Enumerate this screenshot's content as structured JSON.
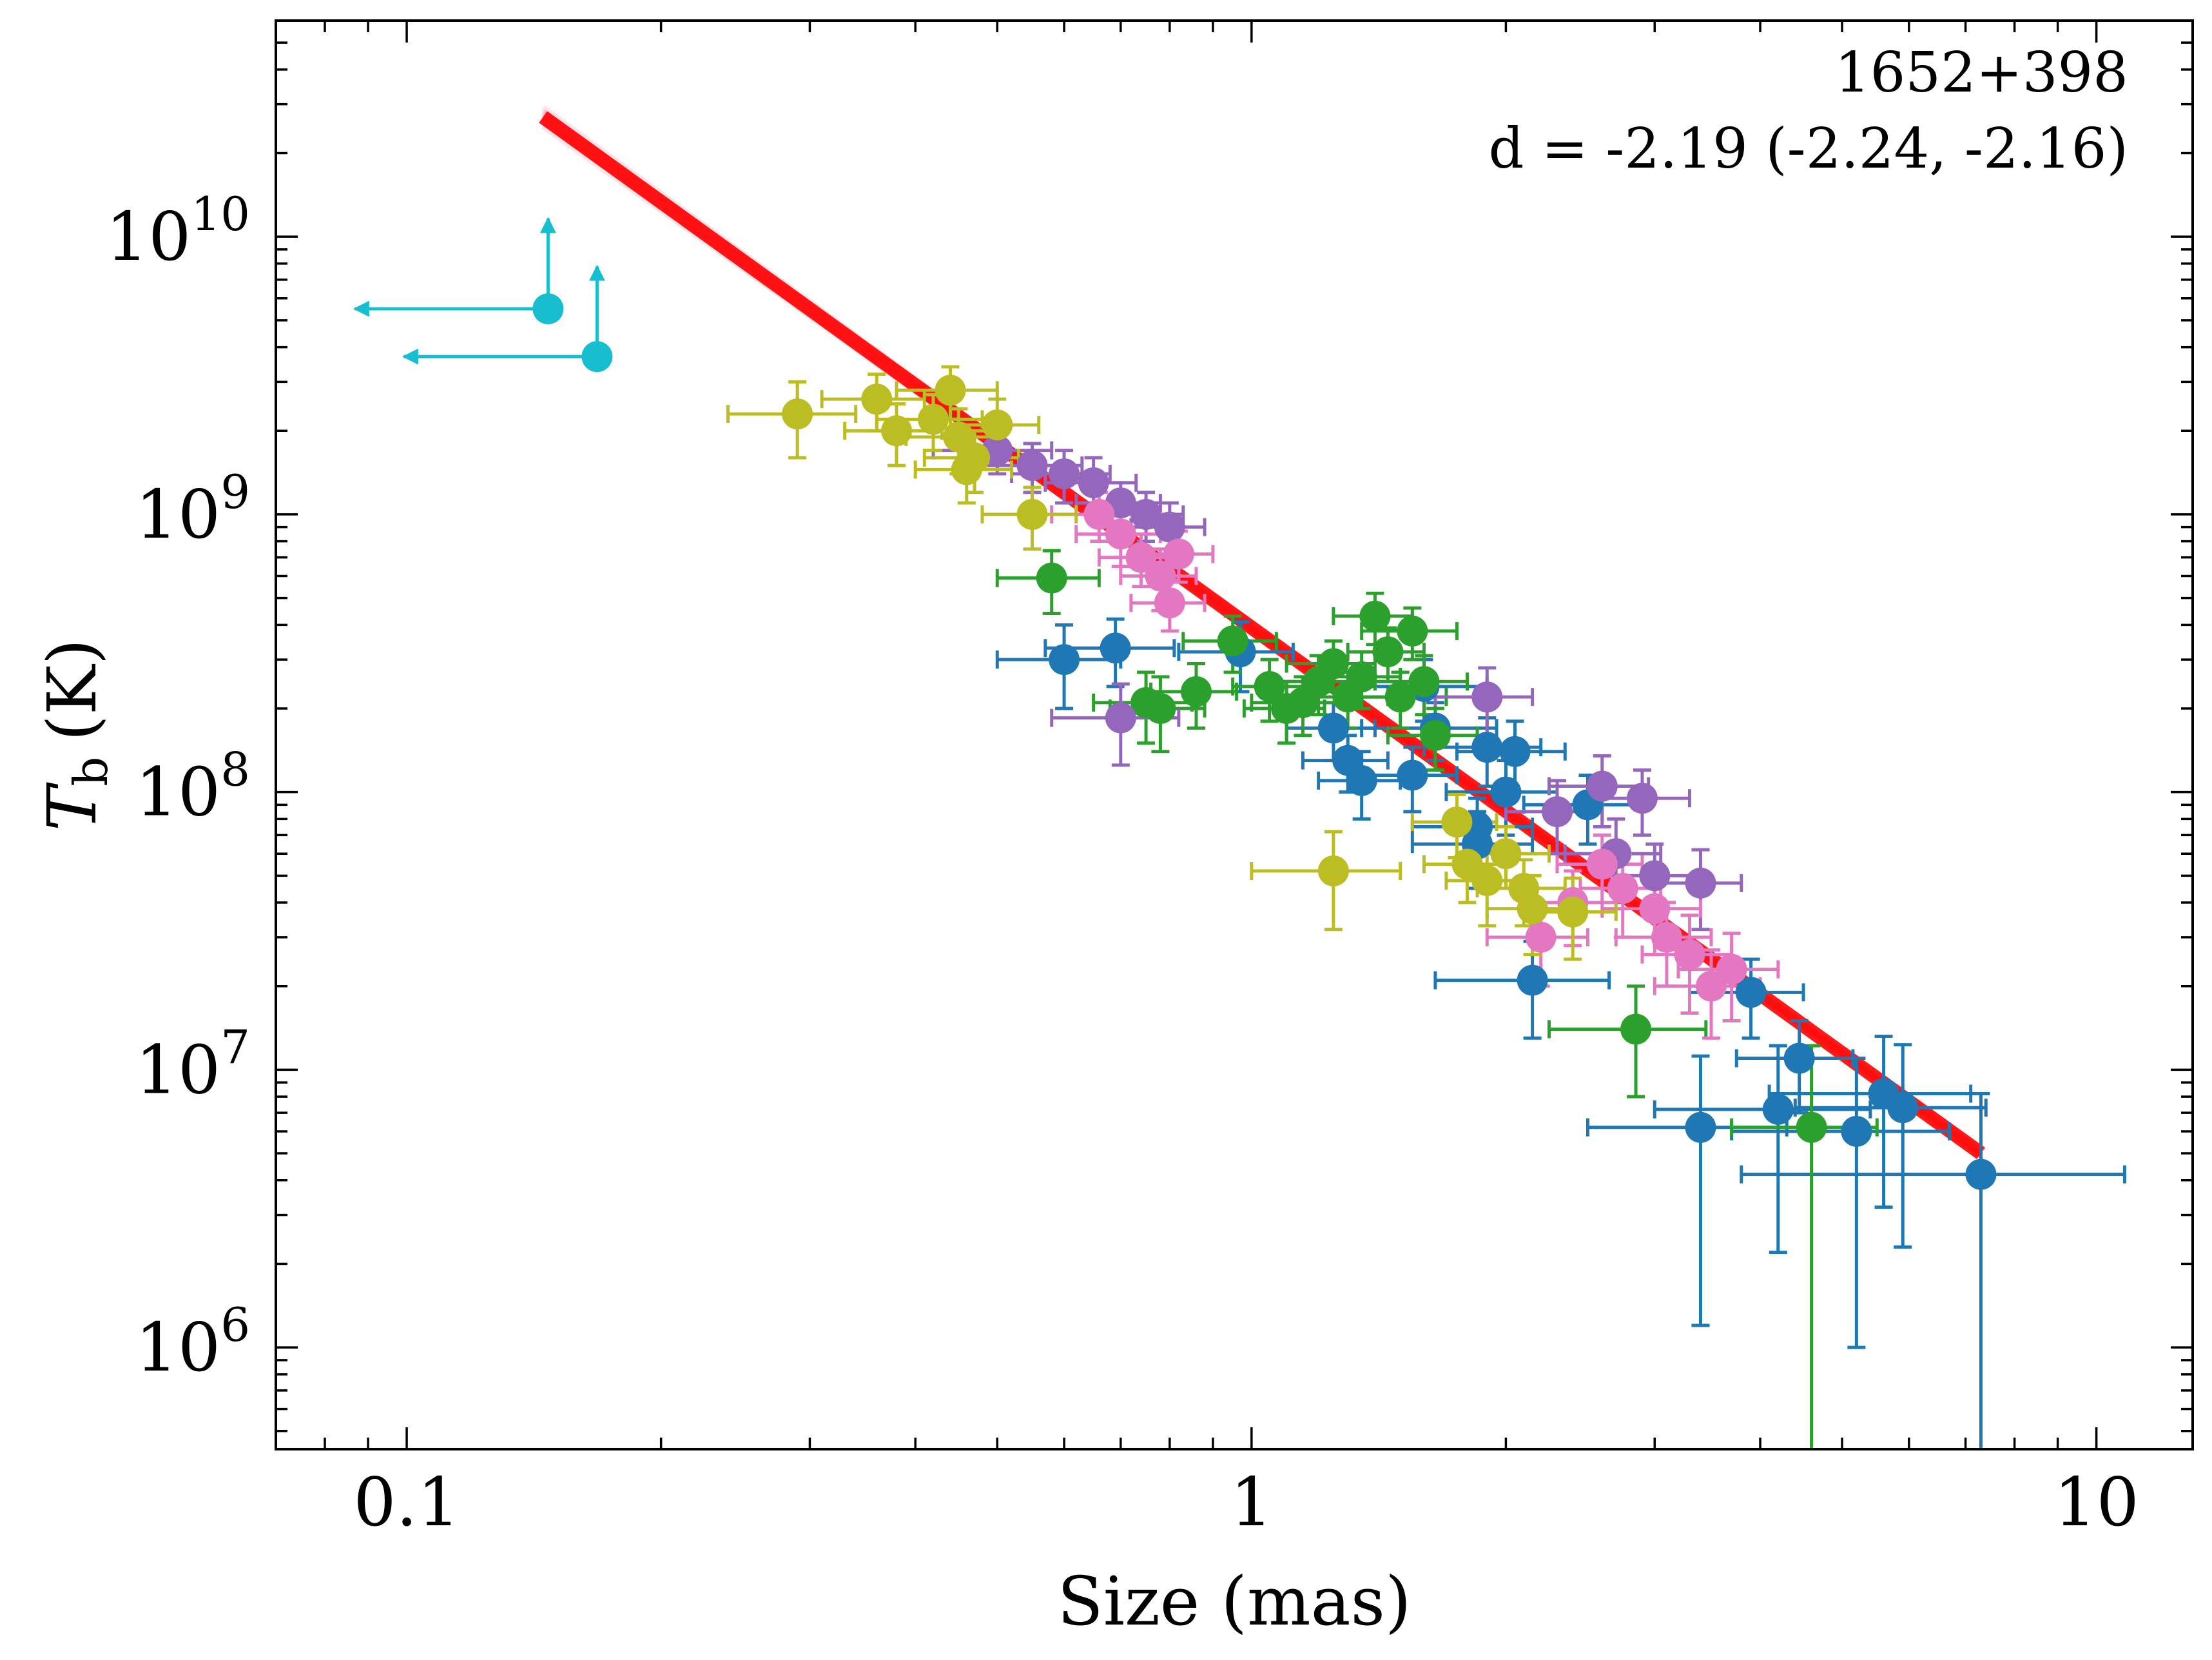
{
  "chart_data": {
    "type": "scatter",
    "annotation": {
      "source": "1652+398",
      "fit_text": "d = -2.19 (-2.24, -2.16)"
    },
    "x_axis": {
      "label": "Size (mas)",
      "scale": "log",
      "range": [
        0.07,
        13
      ],
      "ticks": [
        {
          "value": 0.1,
          "label": "0.1"
        },
        {
          "value": 1,
          "label": "1"
        },
        {
          "value": 10,
          "label": "10"
        }
      ]
    },
    "y_axis": {
      "label_main": "T",
      "label_sub": "b",
      "label_unit": "(K)",
      "scale": "log",
      "range": [
        430000,
        60000000000
      ],
      "ticks": [
        {
          "value": 1000000,
          "base": "10",
          "exp": "6"
        },
        {
          "value": 10000000,
          "base": "10",
          "exp": "7"
        },
        {
          "value": 100000000,
          "base": "10",
          "exp": "8"
        },
        {
          "value": 1000000000,
          "base": "10",
          "exp": "9"
        },
        {
          "value": 10000000000,
          "base": "10",
          "exp": "10"
        }
      ]
    },
    "grid": false,
    "legend": "none",
    "fit_line": {
      "color": "#ff0000",
      "d": -2.19,
      "x_start": 0.145,
      "y_start": 27000000000,
      "x_end": 7.3,
      "y_end": 5000000
    },
    "series": [
      {
        "color": "#1f77b4",
        "points": [
          [
            0.6,
            300000000,
            0.1,
            100000000
          ],
          [
            0.69,
            330000000,
            0.12,
            90000000
          ],
          [
            0.97,
            320000000,
            0.15,
            90000000
          ],
          [
            1.25,
            170000000,
            0.15,
            40000000
          ],
          [
            1.3,
            130000000,
            0.15,
            30000000
          ],
          [
            1.35,
            110000000,
            0.15,
            30000000
          ],
          [
            1.55,
            115000000,
            0.2,
            30000000
          ],
          [
            1.65,
            170000000,
            0.3,
            40000000
          ],
          [
            1.9,
            145000000,
            0.3,
            40000000
          ],
          [
            2.0,
            100000000,
            0.3,
            30000000
          ],
          [
            2.05,
            140000000,
            0.3,
            40000000
          ],
          [
            1.85,
            75000000,
            0.3,
            20000000
          ],
          [
            1.85,
            65000000,
            0.3,
            20000000
          ],
          [
            2.5,
            90000000,
            0.4,
            25000000
          ],
          [
            1.6,
            240000000,
            0.3,
            60000000
          ],
          [
            2.15,
            21000000,
            0.5,
            8000000
          ],
          [
            3.9,
            19000000,
            0.6,
            6000000
          ],
          [
            4.45,
            11000000,
            0.7,
            4000000
          ],
          [
            3.4,
            6200000,
            0.9,
            5000000
          ],
          [
            4.2,
            7200000,
            1.2,
            5000000
          ],
          [
            5.2,
            6000000,
            1.5,
            5000000
          ],
          [
            5.6,
            8200000,
            1.5,
            5000000
          ],
          [
            5.9,
            7300000,
            1.5,
            5000000
          ],
          [
            7.3,
            4200000,
            3.5,
            4000000
          ]
        ]
      },
      {
        "color": "#2ca02c",
        "points": [
          [
            0.58,
            590000000,
            0.08,
            150000000
          ],
          [
            0.75,
            210000000,
            0.1,
            60000000
          ],
          [
            0.78,
            200000000,
            0.1,
            60000000
          ],
          [
            0.86,
            230000000,
            0.1,
            60000000
          ],
          [
            0.95,
            350000000,
            0.12,
            80000000
          ],
          [
            1.1,
            200000000,
            0.12,
            50000000
          ],
          [
            1.15,
            210000000,
            0.15,
            50000000
          ],
          [
            1.2,
            250000000,
            0.15,
            60000000
          ],
          [
            1.25,
            290000000,
            0.15,
            60000000
          ],
          [
            1.3,
            220000000,
            0.15,
            50000000
          ],
          [
            1.35,
            260000000,
            0.15,
            60000000
          ],
          [
            1.4,
            430000000,
            0.15,
            90000000
          ],
          [
            1.45,
            320000000,
            0.15,
            70000000
          ],
          [
            1.5,
            220000000,
            0.2,
            50000000
          ],
          [
            1.55,
            380000000,
            0.2,
            80000000
          ],
          [
            1.6,
            250000000,
            0.2,
            60000000
          ],
          [
            1.65,
            160000000,
            0.2,
            40000000
          ],
          [
            1.05,
            240000000,
            0.1,
            60000000
          ],
          [
            2.85,
            14000000,
            0.6,
            6000000
          ],
          [
            4.6,
            6200000,
            0.9,
            6000000
          ]
        ]
      },
      {
        "color": "#9467bd",
        "points": [
          [
            0.5,
            1700000000,
            0.08,
            300000000
          ],
          [
            0.55,
            1500000000,
            0.08,
            300000000
          ],
          [
            0.6,
            1400000000,
            0.08,
            300000000
          ],
          [
            0.65,
            1300000000,
            0.08,
            300000000
          ],
          [
            0.7,
            1100000000,
            0.08,
            200000000
          ],
          [
            0.75,
            1000000000,
            0.08,
            200000000
          ],
          [
            0.8,
            900000000,
            0.08,
            200000000
          ],
          [
            0.7,
            185000000,
            0.12,
            60000000
          ],
          [
            1.9,
            220000000,
            0.25,
            60000000
          ],
          [
            2.3,
            85000000,
            0.3,
            25000000
          ],
          [
            2.6,
            105000000,
            0.35,
            30000000
          ],
          [
            2.9,
            95000000,
            0.4,
            25000000
          ],
          [
            3.0,
            50000000,
            0.4,
            15000000
          ],
          [
            3.4,
            47000000,
            0.4,
            15000000
          ],
          [
            2.7,
            60000000,
            0.35,
            20000000
          ]
        ]
      },
      {
        "color": "#e377c2",
        "points": [
          [
            0.66,
            1000000000,
            0.08,
            200000000
          ],
          [
            0.7,
            850000000,
            0.08,
            200000000
          ],
          [
            0.74,
            700000000,
            0.08,
            150000000
          ],
          [
            0.78,
            600000000,
            0.08,
            150000000
          ],
          [
            0.8,
            480000000,
            0.08,
            100000000
          ],
          [
            0.82,
            720000000,
            0.08,
            150000000
          ],
          [
            2.2,
            30000000,
            0.3,
            10000000
          ],
          [
            2.4,
            40000000,
            0.3,
            12000000
          ],
          [
            2.6,
            55000000,
            0.3,
            15000000
          ],
          [
            2.75,
            45000000,
            0.3,
            15000000
          ],
          [
            3.0,
            38000000,
            0.4,
            12000000
          ],
          [
            3.1,
            30000000,
            0.4,
            10000000
          ],
          [
            3.3,
            26000000,
            0.4,
            10000000
          ],
          [
            3.5,
            20000000,
            0.5,
            7000000
          ],
          [
            3.7,
            23000000,
            0.5,
            8000000
          ]
        ]
      },
      {
        "color": "#bcbd22",
        "points": [
          [
            0.29,
            2300000000,
            0.05,
            700000000
          ],
          [
            0.36,
            2600000000,
            0.05,
            600000000
          ],
          [
            0.38,
            2000000000,
            0.05,
            500000000
          ],
          [
            0.42,
            2200000000,
            0.06,
            500000000
          ],
          [
            0.44,
            2800000000,
            0.06,
            600000000
          ],
          [
            0.45,
            1900000000,
            0.06,
            500000000
          ],
          [
            0.47,
            1600000000,
            0.06,
            400000000
          ],
          [
            0.5,
            2100000000,
            0.06,
            500000000
          ],
          [
            0.55,
            1000000000,
            0.07,
            250000000
          ],
          [
            0.46,
            1450000000,
            0.06,
            350000000
          ],
          [
            1.25,
            52000000,
            0.25,
            20000000
          ],
          [
            1.75,
            78000000,
            0.2,
            20000000
          ],
          [
            1.8,
            55000000,
            0.2,
            15000000
          ],
          [
            1.9,
            48000000,
            0.2,
            15000000
          ],
          [
            2.0,
            60000000,
            0.25,
            15000000
          ],
          [
            2.1,
            45000000,
            0.25,
            12000000
          ],
          [
            2.15,
            38000000,
            0.25,
            12000000
          ],
          [
            2.4,
            37000000,
            0.3,
            12000000
          ]
        ]
      }
    ],
    "upper_limit_points": {
      "color": "#17becf",
      "points": [
        [
          0.147,
          5500000000
        ],
        [
          0.168,
          3700000000
        ]
      ]
    }
  }
}
